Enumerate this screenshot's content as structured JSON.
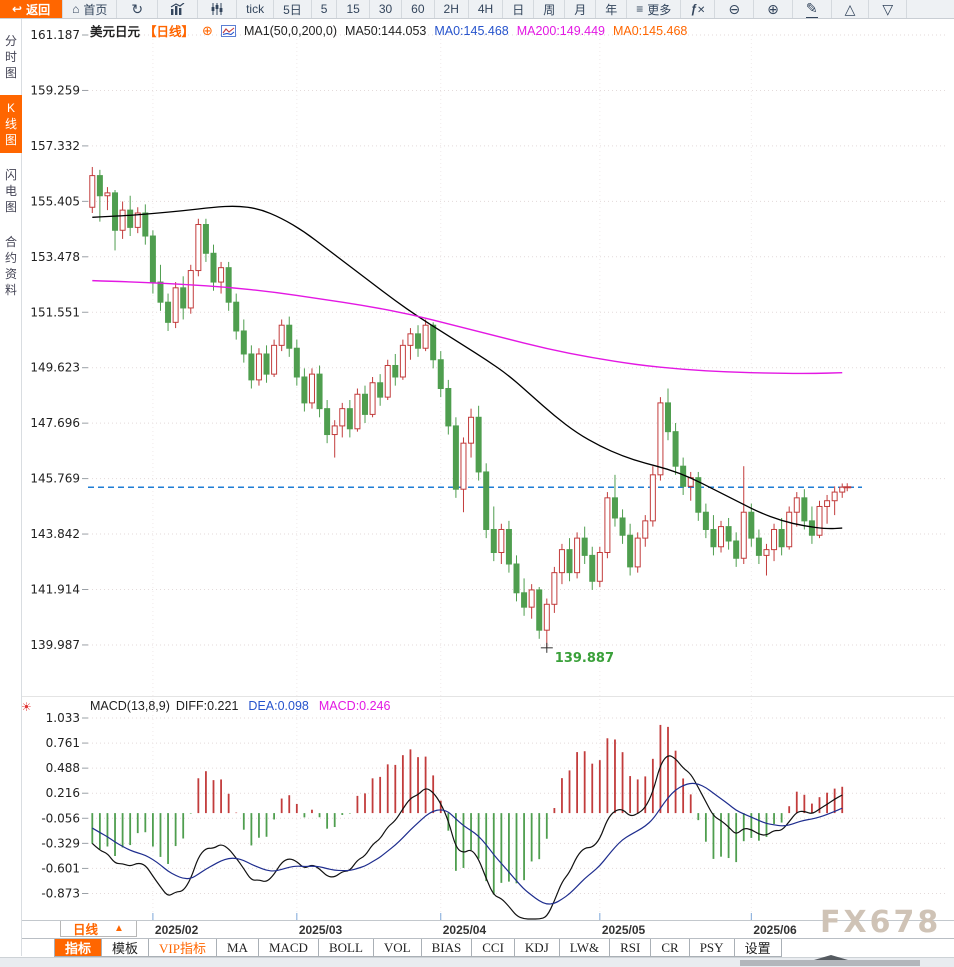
{
  "toolbar_top": {
    "back_label": "返回",
    "home_label": "首页",
    "intervals": [
      "tick",
      "5日",
      "5",
      "15",
      "30",
      "60",
      "2H",
      "4H",
      "日",
      "周",
      "月",
      "年"
    ],
    "more_label": "更多",
    "fx_label": "fx"
  },
  "sidebar": {
    "items": [
      {
        "label": "分时图",
        "active": false
      },
      {
        "label": "K线图",
        "active": true
      },
      {
        "label": "闪电图",
        "active": false
      },
      {
        "label": "合约资料",
        "active": false
      }
    ]
  },
  "chart_header": {
    "symbol": "美元日元",
    "period": "【日线】",
    "ma_settings": "MA1(50,0,200,0)",
    "ma50": "MA50:144.053",
    "ma0_blue": "MA0:145.468",
    "ma200": "MA200:149.449",
    "ma0_orange": "MA0:145.468"
  },
  "macd_header": {
    "title": "MACD(13,8,9)",
    "diff": "DIFF:0.221",
    "dea": "DEA:0.098",
    "macd": "MACD:0.246"
  },
  "bottom_axis": {
    "period_label": "日线",
    "period_arrow": "▲",
    "watermark": "FX678"
  },
  "bottom_toolbar": {
    "tabs": [
      {
        "label": "指标",
        "style": "active"
      },
      {
        "label": "模板",
        "style": "normal"
      },
      {
        "label": "VIP指标",
        "style": "vip"
      },
      {
        "label": "MA",
        "style": "normal"
      },
      {
        "label": "MACD",
        "style": "normal"
      },
      {
        "label": "BOLL",
        "style": "normal"
      },
      {
        "label": "VOL",
        "style": "normal"
      },
      {
        "label": "BIAS",
        "style": "normal"
      },
      {
        "label": "CCI",
        "style": "normal"
      },
      {
        "label": "KDJ",
        "style": "normal"
      },
      {
        "label": "LW&",
        "style": "normal"
      },
      {
        "label": "RSI",
        "style": "normal"
      },
      {
        "label": "CR",
        "style": "normal"
      },
      {
        "label": "PSY",
        "style": "normal"
      },
      {
        "label": "设置",
        "style": "normal"
      }
    ]
  },
  "chart_data": {
    "type": "candlestick+macd",
    "title": "美元日元 日线 (USD/JPY daily with MA50/MA200 and MACD(13,8,9))",
    "price_axis": {
      "ticks": [
        "161.187",
        "159.259",
        "157.332",
        "155.405",
        "153.478",
        "151.551",
        "149.623",
        "147.696",
        "145.769",
        "143.842",
        "141.914",
        "139.987"
      ],
      "top_value": 161.187,
      "bottom_value": 139.987
    },
    "macd_axis": {
      "ticks": [
        "1.033",
        "0.761",
        "0.488",
        "0.216",
        "-0.056",
        "-0.329",
        "-0.601",
        "-0.873"
      ],
      "top_value": 1.033,
      "bottom_value": -0.873
    },
    "months": [
      {
        "label": "2025/02",
        "index": 8
      },
      {
        "label": "2025/03",
        "index": 27
      },
      {
        "label": "2025/04",
        "index": 46
      },
      {
        "label": "2025/05",
        "index": 67
      },
      {
        "label": "2025/06",
        "index": 87
      }
    ],
    "current_price": 145.468,
    "low_annotation": {
      "value": "139.887",
      "index": 60,
      "price": 139.887
    },
    "candles": [
      [
        155.2,
        156.6,
        155.0,
        156.3
      ],
      [
        156.3,
        156.5,
        154.7,
        155.6
      ],
      [
        155.6,
        155.9,
        155.1,
        155.7
      ],
      [
        155.7,
        155.8,
        153.7,
        154.4
      ],
      [
        154.4,
        155.4,
        154.1,
        155.1
      ],
      [
        155.1,
        155.6,
        154.2,
        154.5
      ],
      [
        154.5,
        155.2,
        154.3,
        155.0
      ],
      [
        155.0,
        155.3,
        153.9,
        154.2
      ],
      [
        154.2,
        154.4,
        152.2,
        152.6
      ],
      [
        152.6,
        153.2,
        151.6,
        151.9
      ],
      [
        151.9,
        152.2,
        150.9,
        151.2
      ],
      [
        151.2,
        152.6,
        151.0,
        152.4
      ],
      [
        152.4,
        152.8,
        151.3,
        151.7
      ],
      [
        151.7,
        153.2,
        151.5,
        153.0
      ],
      [
        153.0,
        154.8,
        152.8,
        154.6
      ],
      [
        154.6,
        154.8,
        153.3,
        153.6
      ],
      [
        153.6,
        153.9,
        152.3,
        152.6
      ],
      [
        152.6,
        153.3,
        152.2,
        153.1
      ],
      [
        153.1,
        153.3,
        151.6,
        151.9
      ],
      [
        151.9,
        152.2,
        150.6,
        150.9
      ],
      [
        150.9,
        151.3,
        149.8,
        150.1
      ],
      [
        150.1,
        150.4,
        148.9,
        149.2
      ],
      [
        149.2,
        150.3,
        149.0,
        150.1
      ],
      [
        150.1,
        150.4,
        149.1,
        149.4
      ],
      [
        149.4,
        150.6,
        149.3,
        150.4
      ],
      [
        150.4,
        151.3,
        150.2,
        151.1
      ],
      [
        151.1,
        151.4,
        150.0,
        150.3
      ],
      [
        150.3,
        150.6,
        149.0,
        149.3
      ],
      [
        149.3,
        149.6,
        148.1,
        148.4
      ],
      [
        148.4,
        149.6,
        148.2,
        149.4
      ],
      [
        149.4,
        149.7,
        147.9,
        148.2
      ],
      [
        148.2,
        148.5,
        147.0,
        147.3
      ],
      [
        147.3,
        147.8,
        146.5,
        147.6
      ],
      [
        147.6,
        148.4,
        147.2,
        148.2
      ],
      [
        148.2,
        148.5,
        147.2,
        147.5
      ],
      [
        147.5,
        148.9,
        147.4,
        148.7
      ],
      [
        148.7,
        149.0,
        147.7,
        148.0
      ],
      [
        148.0,
        149.3,
        147.9,
        149.1
      ],
      [
        149.1,
        149.4,
        148.3,
        148.6
      ],
      [
        148.6,
        149.9,
        148.5,
        149.7
      ],
      [
        149.7,
        150.1,
        149.0,
        149.3
      ],
      [
        149.3,
        150.6,
        149.2,
        150.4
      ],
      [
        150.4,
        151.0,
        149.9,
        150.8
      ],
      [
        150.8,
        151.1,
        150.0,
        150.3
      ],
      [
        150.3,
        151.3,
        150.2,
        151.1
      ],
      [
        151.1,
        151.2,
        149.6,
        149.9
      ],
      [
        149.9,
        150.2,
        148.6,
        148.9
      ],
      [
        148.9,
        149.2,
        147.3,
        147.6
      ],
      [
        147.6,
        147.9,
        145.1,
        145.4
      ],
      [
        145.4,
        147.2,
        144.6,
        147.0
      ],
      [
        147.0,
        148.2,
        146.5,
        147.9
      ],
      [
        147.9,
        148.3,
        145.7,
        146.0
      ],
      [
        146.0,
        146.3,
        143.7,
        144.0
      ],
      [
        144.0,
        144.8,
        142.9,
        143.2
      ],
      [
        143.2,
        144.2,
        142.8,
        144.0
      ],
      [
        144.0,
        144.3,
        142.5,
        142.8
      ],
      [
        142.8,
        143.1,
        141.5,
        141.8
      ],
      [
        141.8,
        142.3,
        141.0,
        141.3
      ],
      [
        141.3,
        142.1,
        140.9,
        141.9
      ],
      [
        141.9,
        142.0,
        140.2,
        140.5
      ],
      [
        140.5,
        141.6,
        139.887,
        141.4
      ],
      [
        141.4,
        142.7,
        141.1,
        142.5
      ],
      [
        142.5,
        143.5,
        142.1,
        143.3
      ],
      [
        143.3,
        143.7,
        142.2,
        142.5
      ],
      [
        142.5,
        143.9,
        142.3,
        143.7
      ],
      [
        143.7,
        144.1,
        142.8,
        143.1
      ],
      [
        143.1,
        143.4,
        141.9,
        142.2
      ],
      [
        142.2,
        143.4,
        142.0,
        143.2
      ],
      [
        143.2,
        145.3,
        143.0,
        145.1
      ],
      [
        145.1,
        145.9,
        144.1,
        144.4
      ],
      [
        144.4,
        144.7,
        143.5,
        143.8
      ],
      [
        143.8,
        144.2,
        142.4,
        142.7
      ],
      [
        142.7,
        143.9,
        142.5,
        143.7
      ],
      [
        143.7,
        144.5,
        143.4,
        144.3
      ],
      [
        144.3,
        146.2,
        144.1,
        145.9
      ],
      [
        145.9,
        148.6,
        145.7,
        148.4
      ],
      [
        148.4,
        148.9,
        147.1,
        147.4
      ],
      [
        147.4,
        147.7,
        145.9,
        146.2
      ],
      [
        146.2,
        146.5,
        145.2,
        145.5
      ],
      [
        145.5,
        146.0,
        145.0,
        145.8
      ],
      [
        145.8,
        146.0,
        144.3,
        144.6
      ],
      [
        144.6,
        144.9,
        143.7,
        144.0
      ],
      [
        144.0,
        144.5,
        143.1,
        143.4
      ],
      [
        143.4,
        144.3,
        143.2,
        144.1
      ],
      [
        144.1,
        144.4,
        143.3,
        143.6
      ],
      [
        143.6,
        143.9,
        142.7,
        143.0
      ],
      [
        143.0,
        146.2,
        142.8,
        144.6
      ],
      [
        144.6,
        144.9,
        143.4,
        143.7
      ],
      [
        143.7,
        144.0,
        142.8,
        143.1
      ],
      [
        143.1,
        143.5,
        142.4,
        143.3
      ],
      [
        143.3,
        144.2,
        142.9,
        144.0
      ],
      [
        144.0,
        144.4,
        143.1,
        143.4
      ],
      [
        143.4,
        144.8,
        143.3,
        144.6
      ],
      [
        144.6,
        145.3,
        144.1,
        145.1
      ],
      [
        145.1,
        145.4,
        144.0,
        144.3
      ],
      [
        144.3,
        144.8,
        143.5,
        143.8
      ],
      [
        143.8,
        145.0,
        143.7,
        144.8
      ],
      [
        144.8,
        145.2,
        144.2,
        145.0
      ],
      [
        145.0,
        145.5,
        144.5,
        145.3
      ],
      [
        145.3,
        145.6,
        145.1,
        145.47
      ]
    ],
    "ma50": [
      [
        0,
        154.85
      ],
      [
        4,
        154.9
      ],
      [
        8,
        154.98
      ],
      [
        12,
        155.08
      ],
      [
        16,
        155.2
      ],
      [
        19,
        155.25
      ],
      [
        22,
        155.15
      ],
      [
        25,
        154.82
      ],
      [
        28,
        154.35
      ],
      [
        31,
        153.75
      ],
      [
        34,
        153.15
      ],
      [
        37,
        152.55
      ],
      [
        40,
        151.95
      ],
      [
        43,
        151.4
      ],
      [
        46,
        150.9
      ],
      [
        49,
        150.4
      ],
      [
        52,
        149.9
      ],
      [
        55,
        149.35
      ],
      [
        58,
        148.65
      ],
      [
        61,
        147.95
      ],
      [
        64,
        147.35
      ],
      [
        67,
        146.9
      ],
      [
        70,
        146.55
      ],
      [
        73,
        146.3
      ],
      [
        76,
        146.1
      ],
      [
        79,
        145.8
      ],
      [
        82,
        145.4
      ],
      [
        85,
        145.0
      ],
      [
        88,
        144.6
      ],
      [
        91,
        144.3
      ],
      [
        94,
        144.12
      ],
      [
        97,
        144.02
      ],
      [
        99,
        144.05
      ]
    ],
    "ma200": [
      [
        0,
        152.65
      ],
      [
        6,
        152.6
      ],
      [
        12,
        152.52
      ],
      [
        18,
        152.42
      ],
      [
        24,
        152.25
      ],
      [
        30,
        152.02
      ],
      [
        36,
        151.78
      ],
      [
        42,
        151.48
      ],
      [
        48,
        151.08
      ],
      [
        54,
        150.68
      ],
      [
        60,
        150.28
      ],
      [
        66,
        149.97
      ],
      [
        72,
        149.72
      ],
      [
        78,
        149.56
      ],
      [
        84,
        149.47
      ],
      [
        90,
        149.43
      ],
      [
        95,
        149.42
      ],
      [
        99,
        149.45
      ]
    ],
    "macd_params": {
      "pre_seed": [
        158.4,
        158.0,
        157.6,
        157.2,
        156.8,
        156.5
      ],
      "fast": 8,
      "slow": 13,
      "signal": 9
    },
    "colors": {
      "up": "#c23c3c",
      "down": "#4f9e4f",
      "ma50": "#000000",
      "ma200": "#e318e3",
      "dea_line": "#1e2d8e",
      "diff_line": "#111111",
      "current_line": "#1f7dd4",
      "grid": "#e3dada",
      "low_text": "#3aa03a",
      "accent": "#ff6600"
    }
  }
}
